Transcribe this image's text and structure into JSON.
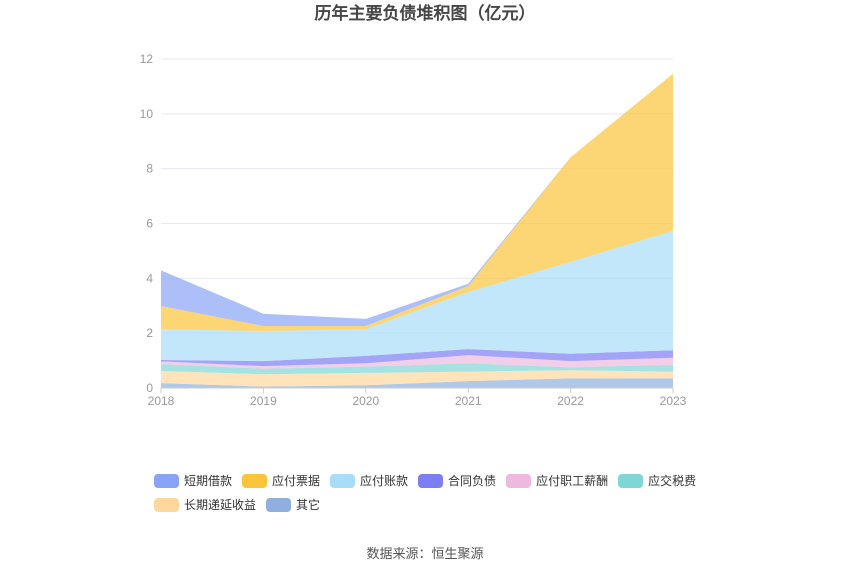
{
  "chart_data": {
    "type": "area",
    "stacked": true,
    "title": "历年主要负债堆积图（亿元）",
    "categories": [
      "2018",
      "2019",
      "2020",
      "2021",
      "2022",
      "2023"
    ],
    "ylim": [
      0,
      12
    ],
    "yticks": [
      0,
      2,
      4,
      6,
      8,
      10,
      12
    ],
    "grid": true,
    "legend_position": "bottom",
    "series": [
      {
        "name": "短期借款",
        "color": "#89a4f7",
        "values": [
          1.3,
          0.45,
          0.26,
          0.08,
          0.0,
          0.0
        ]
      },
      {
        "name": "应付票据",
        "color": "#fbc43b",
        "values": [
          0.85,
          0.18,
          0.11,
          0.22,
          3.82,
          5.73
        ]
      },
      {
        "name": "应付账款",
        "color": "#a8ddf8",
        "values": [
          1.12,
          1.1,
          0.98,
          2.08,
          3.35,
          4.35
        ]
      },
      {
        "name": "合同负债",
        "color": "#7c7ef4",
        "values": [
          0.05,
          0.18,
          0.27,
          0.22,
          0.27,
          0.28
        ]
      },
      {
        "name": "应付职工薪酬",
        "color": "#edb9df",
        "values": [
          0.1,
          0.1,
          0.12,
          0.3,
          0.23,
          0.25
        ]
      },
      {
        "name": "应交税费",
        "color": "#7ed7d6",
        "values": [
          0.25,
          0.2,
          0.23,
          0.3,
          0.1,
          0.25
        ]
      },
      {
        "name": "长期递延收益",
        "color": "#fdd79e",
        "values": [
          0.44,
          0.45,
          0.45,
          0.35,
          0.3,
          0.25
        ]
      },
      {
        "name": "其它",
        "color": "#8fb0df",
        "values": [
          0.18,
          0.05,
          0.1,
          0.25,
          0.35,
          0.35
        ]
      }
    ]
  },
  "source": "数据来源：恒生聚源"
}
